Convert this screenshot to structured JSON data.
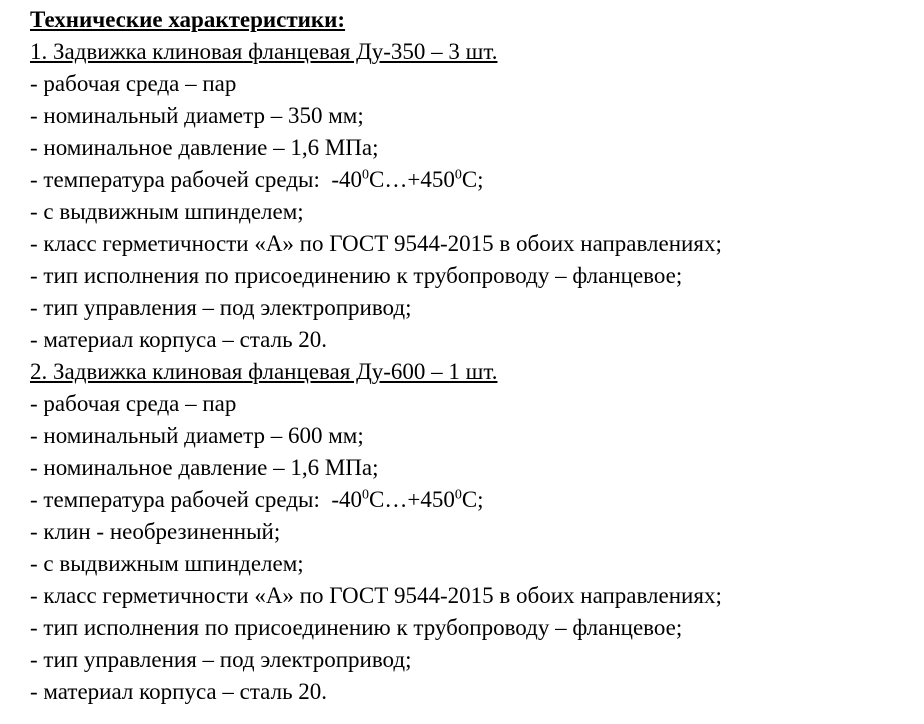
{
  "document": {
    "title": "Технические характеристики:",
    "sections": [
      {
        "heading": "1. Задвижка клиновая фланцевая Ду-350 – 3 шт.",
        "specs": [
          {
            "text": "- рабочая среда – пар"
          },
          {
            "text": "- номинальный диаметр – 350 мм;"
          },
          {
            "text": "- номинальное давление – 1,6 МПа;"
          },
          {
            "prefix": "- температура рабочей среды:  -40",
            "sup1": "0",
            "mid": "С…+450",
            "sup2": "0",
            "suffix": "С;"
          },
          {
            "text": "- с выдвижным шпинделем;"
          },
          {
            "text": "- класс герметичности «А» по ГОСТ 9544-2015 в обоих направлениях;"
          },
          {
            "text": "- тип исполнения по присоединению к трубопроводу – фланцевое;"
          },
          {
            "text": "- тип управления – под электропривод;"
          },
          {
            "text": "- материал корпуса – сталь 20."
          }
        ]
      },
      {
        "heading": "2. Задвижка клиновая фланцевая Ду-600 – 1 шт.",
        "specs": [
          {
            "text": "- рабочая среда – пар"
          },
          {
            "text": "- номинальный диаметр – 600 мм;"
          },
          {
            "text": "- номинальное давление – 1,6 МПа;"
          },
          {
            "prefix": "- температура рабочей среды:  -40",
            "sup1": "0",
            "mid": "С…+450",
            "sup2": "0",
            "suffix": "С;"
          },
          {
            "text": "- клин - необрезиненный;"
          },
          {
            "text": "- с выдвижным шпинделем;"
          },
          {
            "text": "- класс герметичности «А» по ГОСТ 9544-2015 в обоих направлениях;"
          },
          {
            "text": "- тип исполнения по присоединению к трубопроводу – фланцевое;"
          },
          {
            "text": "- тип управления – под электропривод;"
          },
          {
            "text": "- материал корпуса – сталь 20."
          }
        ]
      }
    ]
  }
}
